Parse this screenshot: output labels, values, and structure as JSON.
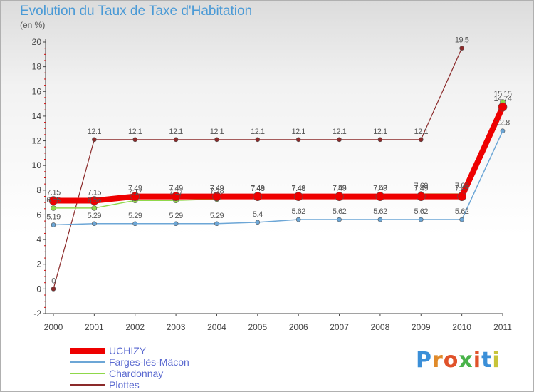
{
  "title": "Evolution du Taux de Taxe d'Habitation",
  "unit": "(en %)",
  "logo": {
    "letters": [
      "P",
      "r",
      "o",
      "x",
      "i",
      "t",
      "i"
    ],
    "colors": [
      "#3b8fd8",
      "#e08a2a",
      "#e0522a",
      "#49b34a",
      "#e0522a",
      "#3b8fd8",
      "#c7c43a"
    ]
  },
  "chart_data": {
    "type": "line",
    "categories": [
      "2000",
      "2001",
      "2002",
      "2003",
      "2004",
      "2005",
      "2006",
      "2007",
      "2008",
      "2009",
      "2010",
      "2011"
    ],
    "ylim": [
      -2,
      20
    ],
    "yticks": [
      "-2",
      "0",
      "2",
      "4",
      "6",
      "8",
      "10",
      "12",
      "14",
      "16",
      "18",
      "20"
    ],
    "series": [
      {
        "name": "Plottes",
        "color": "#8b2a2a",
        "values": [
          0,
          12.1,
          12.1,
          12.1,
          12.1,
          12.1,
          12.1,
          12.1,
          12.1,
          12.1,
          19.5,
          null
        ],
        "labels": [
          "0",
          "12.1",
          "12.1",
          "12.1",
          "12.1",
          "12.1",
          "12.1",
          "12.1",
          "12.1",
          "12.1",
          "19.5",
          ""
        ]
      },
      {
        "name": "Farges-lès-Mâcon",
        "color": "#6ca6d6",
        "values": [
          5.19,
          5.29,
          5.29,
          5.29,
          5.29,
          5.4,
          5.62,
          5.62,
          5.62,
          5.62,
          5.62,
          12.8
        ],
        "labels": [
          "5.19",
          "5.29",
          "5.29",
          "5.29",
          "5.29",
          "5.4",
          "5.62",
          "5.62",
          "5.62",
          "5.62",
          "5.62",
          "12.8"
        ]
      },
      {
        "name": "Chardonnay",
        "color": "#8fd84a",
        "values": [
          6.55,
          6.55,
          7.17,
          7.17,
          7.28,
          7.48,
          7.48,
          7.53,
          7.53,
          7.69,
          7.69,
          15.15
        ],
        "labels": [
          "6.55",
          "6.55",
          "7.17",
          "7.17",
          "7.28",
          "7.48",
          "7.48",
          "7.53",
          "7.53",
          "7.69",
          "7.69",
          "15.15"
        ]
      },
      {
        "name": "UCHIZY",
        "color": "#ee0000",
        "values": [
          7.15,
          7.15,
          7.49,
          7.49,
          7.49,
          7.49,
          7.49,
          7.49,
          7.49,
          7.49,
          7.49,
          14.74
        ],
        "labels": [
          "7.15",
          "7.15",
          "7.49",
          "7.49",
          "7.49",
          "7.49",
          "7.49",
          "7.49",
          "7.49",
          "7.49",
          "7.49",
          "14.74"
        ]
      }
    ],
    "legend_order": [
      "UCHIZY",
      "Farges-lès-Mâcon",
      "Chardonnay",
      "Plottes"
    ]
  }
}
